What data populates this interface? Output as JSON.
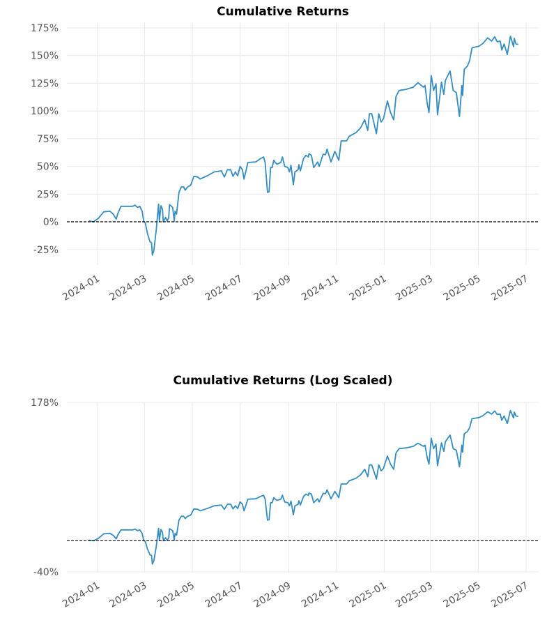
{
  "chart_data": [
    {
      "type": "line",
      "title": "Cumulative Returns",
      "yscale": "linear",
      "ylim": [
        -39,
        180
      ],
      "xlim": [
        "2023-11-23",
        "2025-07-17"
      ],
      "yticks": [
        -25,
        0,
        25,
        50,
        75,
        100,
        125,
        150,
        175
      ],
      "ytick_labels": [
        "-25%",
        "0%",
        "25%",
        "50%",
        "75%",
        "100%",
        "125%",
        "150%",
        "175%"
      ],
      "grid": true,
      "baseline": 0
    },
    {
      "type": "line",
      "title": "Cumulative Returns (Log Scaled)",
      "yscale": "symlog",
      "ylim": [
        -40,
        178
      ],
      "xlim": [
        "2023-11-23",
        "2025-07-17"
      ],
      "yticks": [
        -40,
        178
      ],
      "ytick_labels": [
        "-40%",
        "178%"
      ],
      "grid": true,
      "baseline": 0
    }
  ],
  "xticks": [
    "2024-01",
    "2024-03",
    "2024-05",
    "2024-07",
    "2024-09",
    "2024-11",
    "2025-01",
    "2025-03",
    "2025-05",
    "2025-07"
  ],
  "colors": {
    "line": "#348dc1",
    "baseline": "#000000",
    "grid": "#e8e8e8"
  },
  "series": {
    "unit": "%",
    "x": [
      "2023-12-21",
      "2023-12-27",
      "2024-01-02",
      "2024-01-09",
      "2024-01-17",
      "2024-01-21",
      "2024-01-25",
      "2024-01-27",
      "2024-01-31",
      "2024-02-15",
      "2024-02-18",
      "2024-02-21",
      "2024-02-24",
      "2024-02-27",
      "2024-02-29",
      "2024-03-02",
      "2024-03-05",
      "2024-03-08",
      "2024-03-10",
      "2024-03-11",
      "2024-03-13",
      "2024-03-16",
      "2024-03-17",
      "2024-03-19",
      "2024-03-20",
      "2024-03-22",
      "2024-03-24",
      "2024-03-25",
      "2024-03-28",
      "2024-03-30",
      "2024-04-01",
      "2024-04-02",
      "2024-04-06",
      "2024-04-08",
      "2024-04-09",
      "2024-04-11",
      "2024-04-14",
      "2024-04-17",
      "2024-04-20",
      "2024-04-22",
      "2024-04-25",
      "2024-04-29",
      "2024-05-03",
      "2024-05-08",
      "2024-05-11",
      "2024-05-20",
      "2024-05-29",
      "2024-06-07",
      "2024-06-11",
      "2024-06-15",
      "2024-06-19",
      "2024-06-22",
      "2024-06-25",
      "2024-06-28",
      "2024-07-01",
      "2024-07-04",
      "2024-07-06",
      "2024-07-11",
      "2024-07-21",
      "2024-07-27",
      "2024-07-31",
      "2024-08-02",
      "2024-08-05",
      "2024-08-07",
      "2024-08-09",
      "2024-08-11",
      "2024-08-13",
      "2024-08-15",
      "2024-08-17",
      "2024-08-22",
      "2024-08-24",
      "2024-08-27",
      "2024-08-31",
      "2024-09-02",
      "2024-09-04",
      "2024-09-07",
      "2024-09-09",
      "2024-09-13",
      "2024-09-14",
      "2024-09-16",
      "2024-09-20",
      "2024-09-23",
      "2024-09-26",
      "2024-09-27",
      "2024-09-30",
      "2024-10-03",
      "2024-10-08",
      "2024-10-10",
      "2024-10-15",
      "2024-10-18",
      "2024-10-20",
      "2024-10-25",
      "2024-10-30",
      "2024-11-04",
      "2024-11-07",
      "2024-11-14",
      "2024-11-17",
      "2024-11-26",
      "2024-12-02",
      "2024-12-07",
      "2024-12-11",
      "2024-12-13",
      "2024-12-16",
      "2024-12-20",
      "2024-12-22",
      "2024-12-25",
      "2024-12-28",
      "2024-12-31",
      "2025-01-05",
      "2025-01-09",
      "2025-01-13",
      "2025-01-16",
      "2025-01-20",
      "2025-01-29",
      "2025-02-07",
      "2025-02-13",
      "2025-02-20",
      "2025-02-22",
      "2025-02-25",
      "2025-02-27",
      "2025-03-02",
      "2025-03-05",
      "2025-03-08",
      "2025-03-10",
      "2025-03-15",
      "2025-03-18",
      "2025-03-20",
      "2025-03-26",
      "2025-03-30",
      "2025-04-03",
      "2025-04-07",
      "2025-04-10",
      "2025-04-11",
      "2025-04-13",
      "2025-04-17",
      "2025-04-20",
      "2025-04-23",
      "2025-05-02",
      "2025-05-07",
      "2025-05-13",
      "2025-05-18",
      "2025-05-22",
      "2025-05-25",
      "2025-05-29",
      "2025-05-31",
      "2025-06-03",
      "2025-06-07",
      "2025-06-11",
      "2025-06-15",
      "2025-06-16",
      "2025-06-18",
      "2025-06-21"
    ],
    "y": [
      0.8,
      0,
      3,
      9,
      9.5,
      7,
      2.5,
      7.5,
      14,
      14,
      15,
      13,
      14,
      9.5,
      0.5,
      -1,
      -11,
      -18,
      -19,
      -30,
      -26,
      -7.5,
      0.5,
      16,
      0.5,
      14.5,
      11,
      0,
      4,
      0.5,
      4,
      15.5,
      13,
      0.5,
      9.5,
      7,
      26.5,
      31.5,
      31.5,
      28.5,
      31.5,
      33,
      41,
      40.5,
      38.5,
      41.5,
      45,
      46,
      40.5,
      47,
      47,
      41,
      45,
      41.5,
      50,
      47,
      38.5,
      53.5,
      54,
      57,
      58.5,
      53.5,
      26.5,
      27,
      49,
      49,
      55.5,
      53.5,
      52,
      53.5,
      58.5,
      50,
      49,
      45,
      51,
      33.5,
      45,
      47,
      51.5,
      46,
      57,
      60,
      58.5,
      61.5,
      60,
      49,
      54,
      50,
      61,
      60.5,
      65.5,
      54,
      63.5,
      55.5,
      73,
      73,
      77,
      80.5,
      85,
      92,
      82.5,
      97.5,
      97.5,
      85.5,
      79.5,
      97.5,
      90,
      93,
      109,
      98.5,
      92,
      113,
      118.5,
      119.5,
      121.5,
      125.5,
      121.5,
      123,
      106,
      98.5,
      132,
      118.5,
      124.5,
      96.5,
      126,
      115,
      127.5,
      136,
      118.5,
      116.5,
      95,
      123,
      114,
      137.5,
      140.5,
      145.5,
      157,
      158.5,
      161,
      166,
      163,
      167,
      162.5,
      163,
      155,
      160.5,
      151,
      167.5,
      158,
      165.5,
      160.5,
      160
    ]
  }
}
